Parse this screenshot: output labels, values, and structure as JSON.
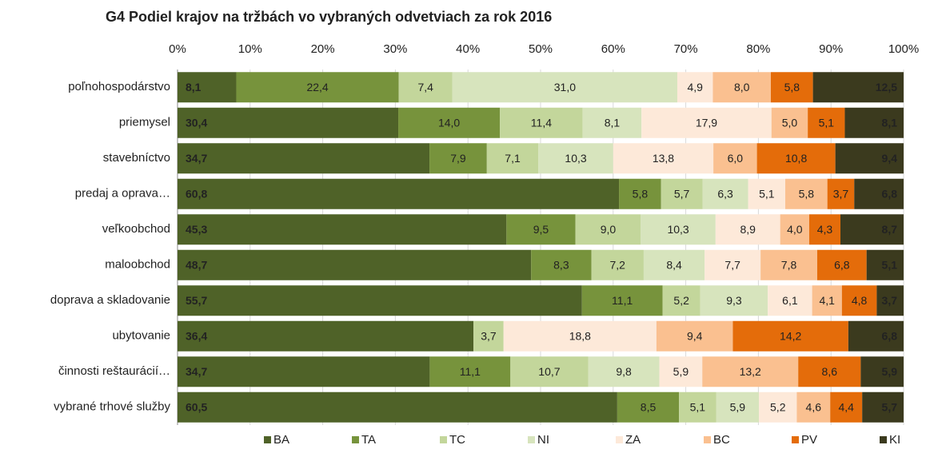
{
  "chart_data": {
    "type": "bar",
    "orientation": "horizontal",
    "stacked": "percent",
    "title": "G4 Podiel krajov na tržbách vo vybraných odvetviach za rok 2016",
    "categories": [
      "poľnohospodárstvo",
      "priemysel",
      "stavebníctvo",
      "predaj a oprava…",
      "veľkoobchod",
      "maloobchod",
      "doprava a skladovanie",
      "ubytovanie",
      "činnosti reštaurácií…",
      "vybrané trhové služby"
    ],
    "xlim": [
      0,
      100
    ],
    "xticks": [
      {
        "value": 0,
        "label": "0%"
      },
      {
        "value": 10,
        "label": "10%"
      },
      {
        "value": 20,
        "label": "20%"
      },
      {
        "value": 30,
        "label": "30%"
      },
      {
        "value": 40,
        "label": "40%"
      },
      {
        "value": 50,
        "label": "50%"
      },
      {
        "value": 60,
        "label": "60%"
      },
      {
        "value": 70,
        "label": "70%"
      },
      {
        "value": 80,
        "label": "80%"
      },
      {
        "value": 90,
        "label": "90%"
      },
      {
        "value": 100,
        "label": "100%"
      }
    ],
    "grid": true,
    "legend": "bottom",
    "series": [
      {
        "name": "BA",
        "color": "#4f6228",
        "values": [
          8.1,
          30.4,
          34.7,
          60.8,
          45.3,
          48.7,
          55.7,
          36.4,
          34.7,
          60.5
        ],
        "value_labels": [
          "8,1",
          "30,4",
          "34,7",
          "60,8",
          "45,3",
          "48,7",
          "55,7",
          "36,4",
          "34,7",
          "60,5"
        ]
      },
      {
        "name": "TA",
        "color": "#77933c",
        "values": [
          22.4,
          14.0,
          7.9,
          5.8,
          9.5,
          8.3,
          11.1,
          null,
          11.1,
          8.5
        ],
        "value_labels": [
          "22,4",
          "14,0",
          "7,9",
          "5,8",
          "9,5",
          "8,3",
          "11,1",
          null,
          "11,1",
          "8,5"
        ]
      },
      {
        "name": "TC",
        "color": "#c3d69b",
        "values": [
          7.4,
          11.4,
          7.1,
          5.7,
          9.0,
          7.2,
          5.2,
          3.7,
          10.7,
          5.1
        ],
        "value_labels": [
          "7,4",
          "11,4",
          "7,1",
          "5,7",
          "9,0",
          "7,2",
          "5,2",
          "3,7",
          "10,7",
          "5,1"
        ]
      },
      {
        "name": "NI",
        "color": "#d7e4bd",
        "values": [
          31.0,
          8.1,
          10.3,
          6.3,
          10.3,
          8.4,
          9.3,
          null,
          9.8,
          5.9
        ],
        "value_labels": [
          "31,0",
          "8,1",
          "10,3",
          "6,3",
          "10,3",
          "8,4",
          "9,3",
          null,
          "9,8",
          "5,9"
        ]
      },
      {
        "name": "ZA",
        "color": "#fde9d9",
        "values": [
          4.9,
          17.9,
          13.8,
          5.1,
          8.9,
          7.7,
          6.1,
          18.8,
          5.9,
          5.2
        ],
        "value_labels": [
          "4,9",
          "17,9",
          "13,8",
          "5,1",
          "8,9",
          "7,7",
          "6,1",
          "18,8",
          "5,9",
          "5,2"
        ]
      },
      {
        "name": "BC",
        "color": "#fac090",
        "values": [
          8.0,
          5.0,
          6.0,
          5.8,
          4.0,
          7.8,
          4.1,
          9.4,
          13.2,
          4.6
        ],
        "value_labels": [
          "8,0",
          "5,0",
          "6,0",
          "5,8",
          "4,0",
          "7,8",
          "4,1",
          "9,4",
          "13,2",
          "4,6"
        ]
      },
      {
        "name": "PV",
        "color": "#e46c0a",
        "values": [
          5.8,
          5.1,
          10.8,
          3.7,
          4.3,
          6.8,
          4.8,
          14.2,
          8.6,
          4.4
        ],
        "value_labels": [
          "5,8",
          "5,1",
          "10,8",
          "3,7",
          "4,3",
          "6,8",
          "4,8",
          "14,2",
          "8,6",
          "4,4"
        ]
      },
      {
        "name": "KI",
        "color": "#3b3a1e",
        "values": [
          12.5,
          8.1,
          9.4,
          6.8,
          8.7,
          5.1,
          3.7,
          6.8,
          5.9,
          5.7
        ],
        "value_labels": [
          "12,5",
          "8,1",
          "9,4",
          "6,8",
          "8,7",
          "5,1",
          "3,7",
          "6,8",
          "5,9",
          "5,7"
        ]
      }
    ]
  }
}
